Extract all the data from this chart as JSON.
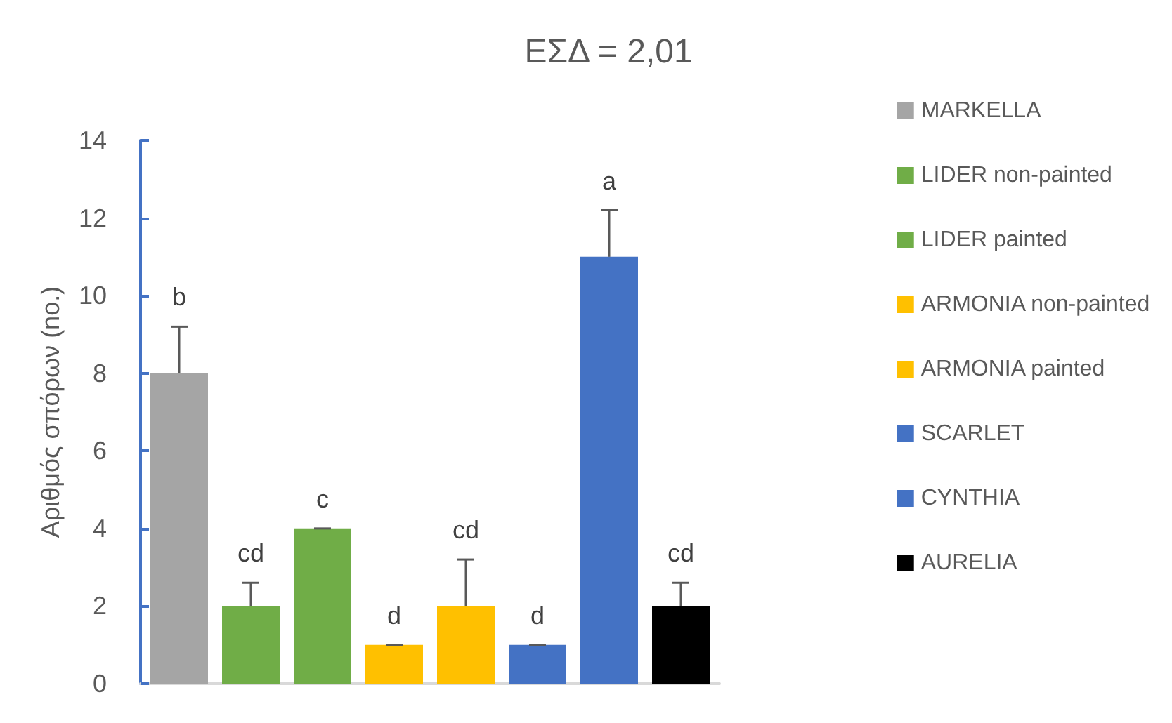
{
  "chart_data": {
    "type": "bar",
    "title": "ΕΣΔ = 2,01",
    "ylabel": "Αριθμός σπόρων (no.)",
    "categories": [
      null
    ],
    "series": [
      {
        "name": "MARKELLA",
        "color": "#a5a5a5",
        "values": [
          8
        ],
        "errors": [
          [
            8,
            9.2
          ]
        ],
        "value_labels": [
          "b"
        ]
      },
      {
        "name": "LIDER non-painted",
        "color": "#70ad47",
        "values": [
          2
        ],
        "errors": [
          [
            2,
            2.6
          ]
        ],
        "value_labels": [
          "cd"
        ]
      },
      {
        "name": "LIDER painted",
        "color": "#70ad47",
        "values": [
          4
        ],
        "errors": [
          [
            4,
            4
          ]
        ],
        "value_labels": [
          "c"
        ]
      },
      {
        "name": "ARMONIA non-painted",
        "color": "#ffc000",
        "values": [
          1
        ],
        "errors": [
          [
            1,
            1
          ]
        ],
        "value_labels": [
          "d"
        ]
      },
      {
        "name": "ARMONIA painted",
        "color": "#ffc000",
        "values": [
          2
        ],
        "errors": [
          [
            2,
            3.2
          ]
        ],
        "value_labels": [
          "cd"
        ]
      },
      {
        "name": "SCARLET",
        "color": "#4472c4",
        "values": [
          1
        ],
        "errors": [
          [
            1,
            1
          ]
        ],
        "value_labels": [
          "d"
        ]
      },
      {
        "name": "CYNTHIA",
        "color": "#4472c4",
        "values": [
          11
        ],
        "errors": [
          [
            11,
            12.2
          ]
        ],
        "value_labels": [
          "a"
        ]
      },
      {
        "name": "AURELIA",
        "color": "#000000",
        "values": [
          2
        ],
        "errors": [
          [
            2,
            2.6
          ]
        ],
        "value_labels": [
          "cd"
        ]
      }
    ],
    "ylim": [
      0,
      14
    ],
    "yticks": [
      0,
      2,
      4,
      6,
      8,
      10,
      12,
      14
    ],
    "grid": false,
    "legend": "right"
  }
}
